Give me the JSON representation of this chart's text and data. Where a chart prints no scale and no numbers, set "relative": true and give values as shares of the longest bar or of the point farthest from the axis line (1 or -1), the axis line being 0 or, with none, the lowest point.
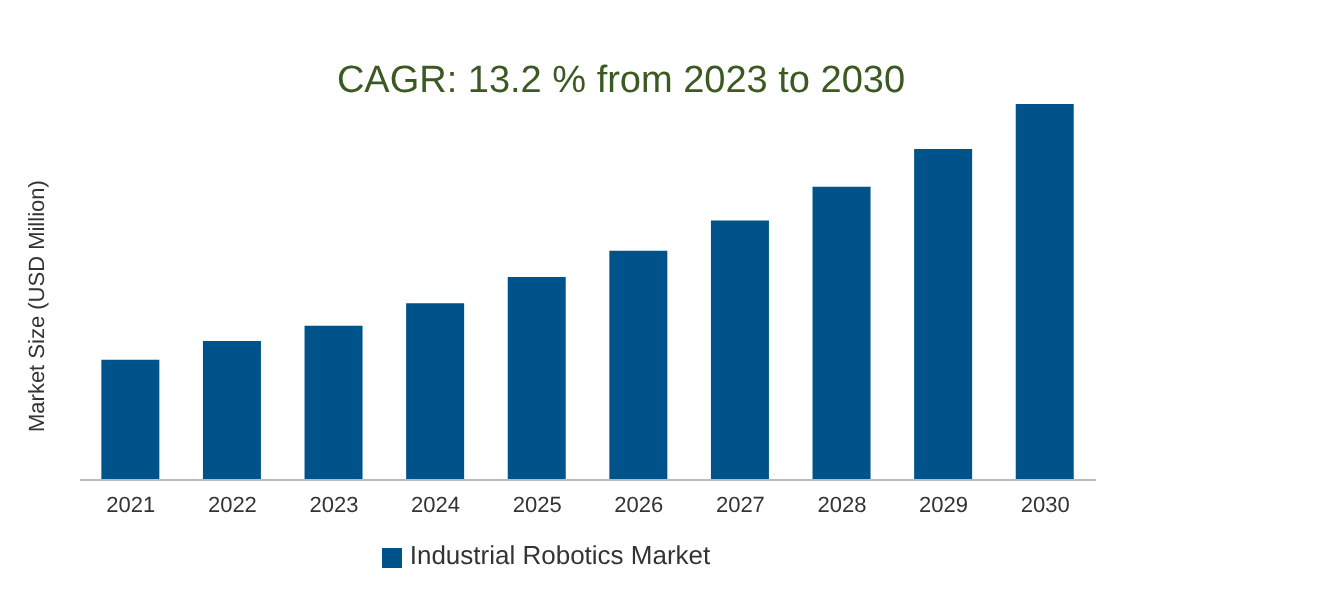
{
  "chart_data": {
    "type": "bar",
    "title": "CAGR: 13.2 % from 2023 to 2030",
    "ylabel": "Market Size (USD Million)",
    "relative": true,
    "categories": [
      "2021",
      "2022",
      "2023",
      "2024",
      "2025",
      "2026",
      "2027",
      "2028",
      "2029",
      "2030"
    ],
    "series": [
      {
        "name": "Industrial Robotics Market",
        "color": "#00538a",
        "values": [
          0.32,
          0.37,
          0.41,
          0.47,
          0.54,
          0.61,
          0.69,
          0.78,
          0.88,
          1
        ]
      }
    ],
    "legend": "bottom",
    "grid": false
  }
}
